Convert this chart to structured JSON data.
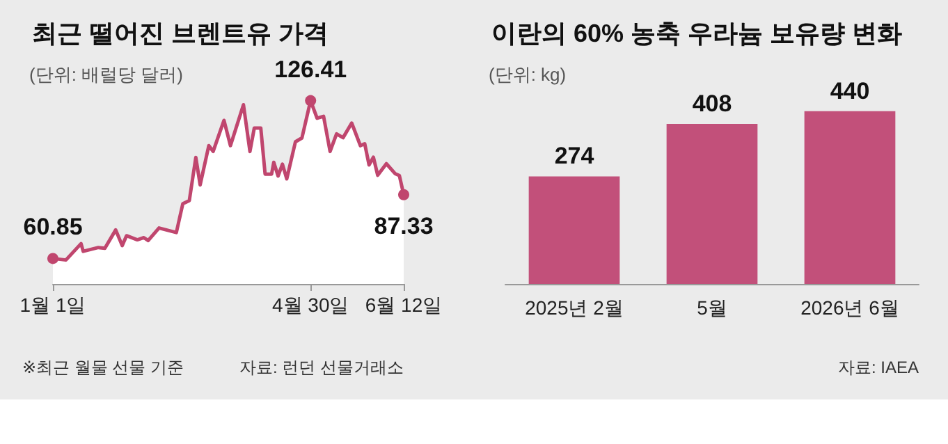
{
  "chart_data": [
    {
      "type": "area",
      "title": "최근 떨어진 브렌트유 가격",
      "subtitle": "(단위: 배럴당 달러)",
      "x": [
        "--01-01",
        "--01-07",
        "--01-14",
        "--01-15",
        "--01-22",
        "--01-25",
        "--01-30",
        "--02-02",
        "--02-04",
        "--02-09",
        "--02-12",
        "--02-14",
        "--02-19",
        "--02-27",
        "--03-02",
        "--03-05",
        "--03-08",
        "--03-10",
        "--03-14",
        "--03-16",
        "--03-21",
        "--03-24",
        "--03-30",
        "--04-02",
        "--04-04",
        "--04-07",
        "--04-09",
        "--04-12",
        "--04-13",
        "--04-15",
        "--04-17",
        "--04-19",
        "--04-23",
        "--04-26",
        "--04-30",
        "--05-03",
        "--05-06",
        "--05-09",
        "--05-12",
        "--05-15",
        "--05-19",
        "--05-23",
        "--05-25",
        "--05-27",
        "--05-29",
        "--05-31",
        "--06-04",
        "--06-08",
        "--06-10",
        "--06-12"
      ],
      "values": [
        60.85,
        60.2,
        67.0,
        63.8,
        65.4,
        65.1,
        72.7,
        66.2,
        70.3,
        68.6,
        69.5,
        68.3,
        73.5,
        71.6,
        83.6,
        84.9,
        102.8,
        91.4,
        107.7,
        105.3,
        118.2,
        107.7,
        124.7,
        105.3,
        115.0,
        115.0,
        95.9,
        95.9,
        100.8,
        95.1,
        100.0,
        93.9,
        109.3,
        110.9,
        126.41,
        119.1,
        119.9,
        105.3,
        112.6,
        111.0,
        117.1,
        107.7,
        108.5,
        99.7,
        102.9,
        95.4,
        100.2,
        96.1,
        95.3,
        87.33
      ],
      "value_labels": [
        "60.85",
        null,
        null,
        null,
        null,
        null,
        null,
        null,
        null,
        null,
        null,
        null,
        null,
        null,
        null,
        null,
        null,
        null,
        null,
        null,
        null,
        null,
        null,
        null,
        null,
        null,
        null,
        null,
        null,
        null,
        null,
        null,
        null,
        null,
        "126.41",
        null,
        null,
        null,
        null,
        null,
        null,
        null,
        null,
        null,
        null,
        null,
        null,
        null,
        null,
        "87.33"
      ],
      "color": "#c0466e",
      "xlim": [
        "--01-01",
        "--06-12"
      ],
      "xticks": [
        {
          "value": "--01-01",
          "label": "1월 1일"
        },
        {
          "value": "--04-30",
          "label": "4월 30일"
        },
        {
          "value": "--06-12",
          "label": "6월 12일"
        }
      ],
      "annotations": [
        "※최근 월물 선물 기준",
        "자료: 런던 선물거래소"
      ]
    },
    {
      "type": "bar",
      "title": "이란의 60% 농축 우라늄 보유량 변화",
      "subtitle": "(단위: kg)",
      "categories": [
        "2025년 2월",
        "5월",
        "2026년 6월"
      ],
      "values": [
        274,
        408,
        440
      ],
      "color": "#c2507a",
      "data_labels": true,
      "annotations": [
        "자료: IAEA"
      ]
    }
  ]
}
